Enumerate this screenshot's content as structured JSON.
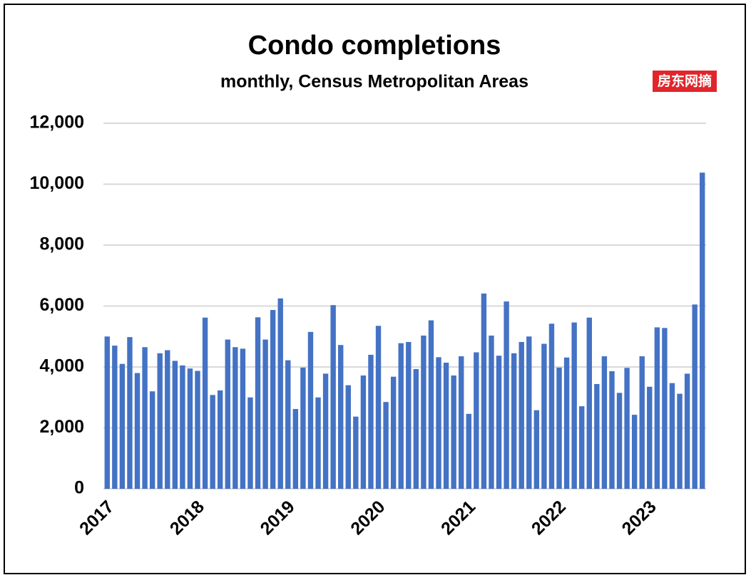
{
  "watermark": "房东网摘",
  "chart_data": {
    "type": "bar",
    "title": "Condo completions",
    "subtitle": "monthly, Census Metropolitan Areas",
    "categories": [
      "2017",
      null,
      null,
      null,
      null,
      null,
      null,
      null,
      null,
      null,
      null,
      null,
      "2018",
      null,
      null,
      null,
      null,
      null,
      null,
      null,
      null,
      null,
      null,
      null,
      "2019",
      null,
      null,
      null,
      null,
      null,
      null,
      null,
      null,
      null,
      null,
      null,
      "2020",
      null,
      null,
      null,
      null,
      null,
      null,
      null,
      null,
      null,
      null,
      null,
      "2021",
      null,
      null,
      null,
      null,
      null,
      null,
      null,
      null,
      null,
      null,
      null,
      "2022",
      null,
      null,
      null,
      null,
      null,
      null,
      null,
      null,
      null,
      null,
      null,
      "2023",
      null,
      null,
      null,
      null,
      null,
      null,
      null
    ],
    "values": [
      5000,
      4700,
      4100,
      4980,
      3800,
      4650,
      3200,
      4450,
      4550,
      4200,
      4050,
      3950,
      3870,
      5620,
      3080,
      3230,
      4900,
      4650,
      4600,
      3000,
      5630,
      4900,
      5870,
      6250,
      4220,
      2620,
      3980,
      5150,
      3000,
      3780,
      6030,
      4720,
      3400,
      2370,
      3720,
      4400,
      5350,
      2850,
      3680,
      4780,
      4820,
      3930,
      5030,
      5530,
      4320,
      4140,
      3720,
      4350,
      2460,
      4480,
      6410,
      5030,
      4370,
      6150,
      4450,
      4820,
      5000,
      2580,
      4760,
      5420,
      3980,
      4310,
      5460,
      2710,
      5620,
      3440,
      4350,
      3860,
      3150,
      3970,
      2430,
      4350,
      3350,
      5300,
      5280,
      3470,
      3120,
      3780,
      6050,
      10380
    ],
    "color": "#4472c4",
    "ylim": [
      0,
      12000
    ],
    "yticks": [
      0,
      {
        "value": 2000,
        "label": "2,000"
      },
      {
        "value": 4000,
        "label": "4,000"
      },
      {
        "value": 6000,
        "label": "6,000"
      },
      {
        "value": 8000,
        "label": "8,000"
      },
      {
        "value": 10000,
        "label": "10,000"
      },
      {
        "value": 12000,
        "label": "12,000"
      }
    ],
    "grid": true
  }
}
